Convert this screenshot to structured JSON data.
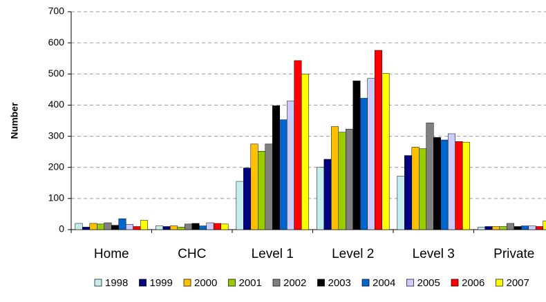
{
  "chart_data": {
    "type": "bar",
    "y_label": "Number",
    "categories": [
      "Home",
      "CHC",
      "Level 1",
      "Level 2",
      "Level 3",
      "Private"
    ],
    "series": [
      {
        "name": "1998",
        "color": "#c4ecec",
        "values": [
          20,
          12,
          155,
          200,
          172,
          8
        ]
      },
      {
        "name": "1999",
        "color": "#000080",
        "values": [
          8,
          10,
          198,
          226,
          238,
          10
        ]
      },
      {
        "name": "2000",
        "color": "#ffc000",
        "values": [
          20,
          12,
          275,
          331,
          265,
          10
        ]
      },
      {
        "name": "2001",
        "color": "#99cc00",
        "values": [
          18,
          8,
          252,
          313,
          260,
          10
        ]
      },
      {
        "name": "2002",
        "color": "#808080",
        "values": [
          22,
          18,
          275,
          323,
          343,
          20
        ]
      },
      {
        "name": "2003",
        "color": "#000000",
        "values": [
          14,
          20,
          398,
          478,
          296,
          10
        ]
      },
      {
        "name": "2004",
        "color": "#0066cc",
        "values": [
          35,
          12,
          353,
          422,
          288,
          12
        ]
      },
      {
        "name": "2005",
        "color": "#ccccff",
        "values": [
          17,
          22,
          413,
          486,
          308,
          12
        ]
      },
      {
        "name": "2006",
        "color": "#ff0000",
        "values": [
          10,
          20,
          543,
          576,
          283,
          10
        ]
      },
      {
        "name": "2007",
        "color": "#ffff00",
        "values": [
          30,
          18,
          500,
          502,
          281,
          28
        ]
      }
    ],
    "ylim": [
      0,
      700
    ],
    "yticks": [
      0,
      100,
      200,
      300,
      400,
      500,
      600,
      700
    ],
    "grid": true
  }
}
